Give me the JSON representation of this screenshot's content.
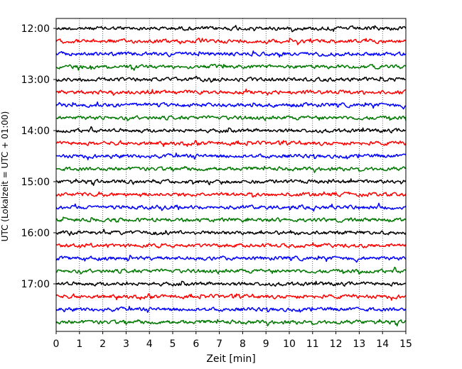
{
  "chart_data": {
    "type": "line",
    "title": "",
    "xlabel": "Zeit  [min]",
    "ylabel": "UTC (Lokalzeit = UTC + 01:00)",
    "xlim": [
      0,
      15
    ],
    "x_ticks": [
      "0",
      "1",
      "2",
      "3",
      "4",
      "5",
      "6",
      "7",
      "8",
      "9",
      "10",
      "11",
      "12",
      "13",
      "14",
      "15"
    ],
    "y_tick_labels": [
      "12:00",
      "13:00",
      "14:00",
      "15:00",
      "16:00",
      "17:00"
    ],
    "trace_interval_min": 15,
    "start_time": "12:00",
    "trace_count": 24,
    "grid": "vertical dotted",
    "trace_colors": [
      "#000000",
      "#ff0000",
      "#0000ff",
      "#007700"
    ],
    "signal_type": "seismogram noise traces (illustrative)"
  }
}
